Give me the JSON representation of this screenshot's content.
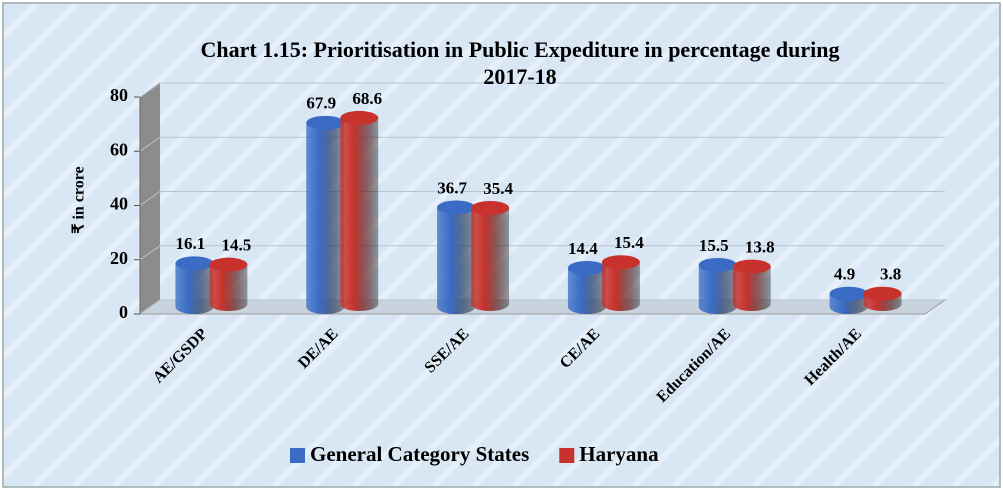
{
  "chart_data": {
    "type": "bar",
    "title": "Chart 1.15: Prioritisation in Public Expediture in percentage during 2017-18",
    "y_label": "₹ in crore",
    "categories": [
      "AE/GSDP",
      "DE/AE",
      "SSE/AE",
      "CE/AE",
      "Education/AE",
      "Health/AE"
    ],
    "series": [
      {
        "name": "General Category States",
        "color": "#3a6cc6",
        "values": [
          16.1,
          67.9,
          36.7,
          14.4,
          15.5,
          4.9
        ]
      },
      {
        "name": "Haryana",
        "color": "#c8322c",
        "values": [
          14.5,
          68.6,
          35.4,
          15.4,
          13.8,
          3.8
        ]
      }
    ],
    "ylim": [
      0,
      80
    ],
    "yticks": [
      0,
      20,
      40,
      60,
      80
    ],
    "grid": true,
    "legend": "bottom"
  }
}
